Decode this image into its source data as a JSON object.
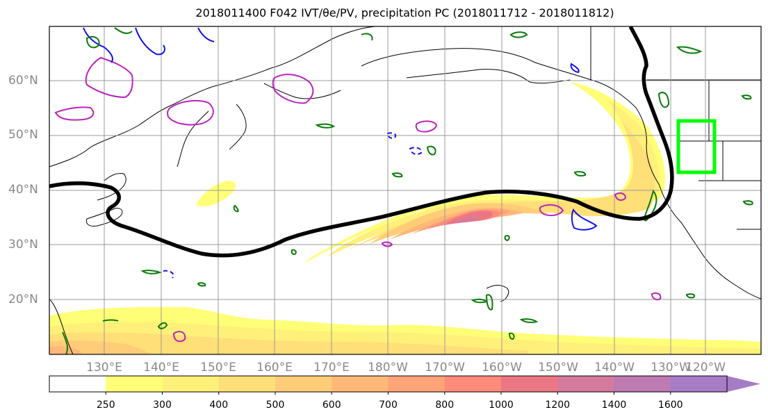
{
  "title": "2018011400 F042 IVT/θe/PV, precipitation PC (2018011712 - 2018011812)",
  "map": {
    "lat_labels": [
      "60°N",
      "50°N",
      "40°N",
      "30°N",
      "20°N"
    ],
    "lon_labels": [
      "130°E",
      "140°E",
      "150°E",
      "160°E",
      "170°E",
      "180°W",
      "170°W",
      "160°W",
      "150°W",
      "140°W",
      "130°W",
      "120°W"
    ],
    "grid": true,
    "region_box": {
      "lat_range": [
        43,
        53
      ],
      "lon_range": [
        -126,
        -120
      ],
      "color": "#00ff00"
    }
  },
  "colorbar": {
    "levels": [
      "250",
      "300",
      "400",
      "500",
      "600",
      "700",
      "800",
      "1000",
      "1200",
      "1400",
      "1600"
    ],
    "colors": [
      "#ffffff",
      "#ffff77",
      "#fff07a",
      "#ffdf78",
      "#ffcc78",
      "#ffb878",
      "#ffa378",
      "#ff8b7b",
      "#ec7784",
      "#d57a9c",
      "#bd7ab3",
      "#a77cc6"
    ],
    "extend": "max"
  },
  "colors": {
    "jet_line": "#000000",
    "theta_contour": "#0a7a0a",
    "pv_contour": "#bb22bb",
    "blue_contour": "#1111ee"
  }
}
